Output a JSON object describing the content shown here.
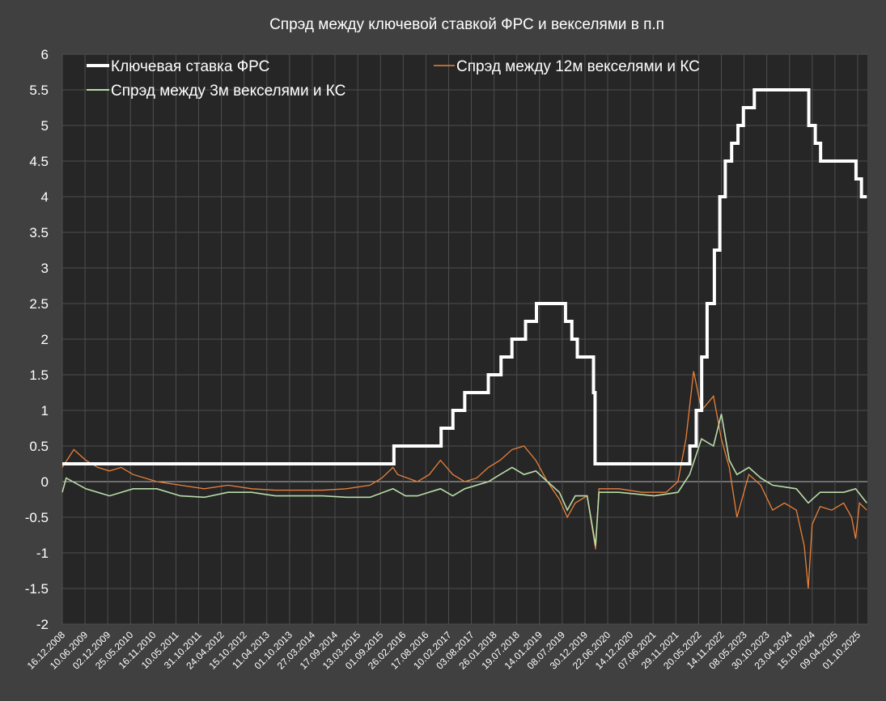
{
  "chart_data": {
    "type": "line",
    "title": "Спрэд между ключевой ставкой ФРС и векселями в п.п",
    "xlabel": "",
    "ylabel": "",
    "ylim": [
      -2,
      6
    ],
    "ystep": 0.5,
    "yticks": [
      "-2",
      "-1.5",
      "-1",
      "-0.5",
      "0",
      "0.5",
      "1",
      "1.5",
      "2",
      "2.5",
      "3",
      "3.5",
      "4",
      "4.5",
      "5",
      "5.5",
      "6"
    ],
    "grid": true,
    "legend_placement": "top",
    "xticks": [
      "16.12.2008",
      "10.06.2009",
      "02.12.2009",
      "25.05.2010",
      "16.11.2010",
      "10.05.2011",
      "31.10.2011",
      "24.04.2012",
      "15.10.2012",
      "11.04.2013",
      "01.10.2013",
      "27.03.2014",
      "17.09.2014",
      "13.03.2015",
      "01.09.2015",
      "26.02.2016",
      "17.08.2016",
      "10.02.2017",
      "03.08.2017",
      "26.01.2018",
      "19.07.2018",
      "14.01.2019",
      "08.07.2019",
      "30.12.2019",
      "22.06.2020",
      "14.12.2020",
      "07.06.2021",
      "29.11.2021",
      "20.05.2022",
      "14.11.2022",
      "08.05.2023",
      "30.10.2023",
      "23.04.2024",
      "15.10.2024",
      "09.04.2025",
      "01.10.2025"
    ],
    "xrange": [
      "2008-12-16",
      "2025-12-10"
    ],
    "series": [
      {
        "name": "Ключевая ставка ФРС",
        "color": "#ffffff",
        "style": "step",
        "points": [
          [
            "2008-12-16",
            0.25
          ],
          [
            "2015-12-17",
            0.5
          ],
          [
            "2016-12-15",
            0.75
          ],
          [
            "2017-03-16",
            1.0
          ],
          [
            "2017-06-15",
            1.25
          ],
          [
            "2017-12-14",
            1.5
          ],
          [
            "2018-03-22",
            1.75
          ],
          [
            "2018-06-14",
            2.0
          ],
          [
            "2018-09-27",
            2.25
          ],
          [
            "2018-12-20",
            2.5
          ],
          [
            "2019-08-01",
            2.25
          ],
          [
            "2019-09-19",
            2.0
          ],
          [
            "2019-10-31",
            1.75
          ],
          [
            "2020-03-04",
            1.25
          ],
          [
            "2020-03-16",
            0.25
          ],
          [
            "2022-03-17",
            0.5
          ],
          [
            "2022-05-05",
            1.0
          ],
          [
            "2022-06-16",
            1.75
          ],
          [
            "2022-07-28",
            2.5
          ],
          [
            "2022-09-22",
            3.25
          ],
          [
            "2022-11-03",
            4.0
          ],
          [
            "2022-12-15",
            4.5
          ],
          [
            "2023-02-02",
            4.75
          ],
          [
            "2023-03-23",
            5.0
          ],
          [
            "2023-05-04",
            5.25
          ],
          [
            "2023-07-27",
            5.5
          ],
          [
            "2024-09-19",
            5.0
          ],
          [
            "2024-11-08",
            4.75
          ],
          [
            "2024-12-19",
            4.5
          ],
          [
            "2025-09-18",
            4.25
          ],
          [
            "2025-10-30",
            4.0
          ],
          [
            "2025-12-10",
            4.0
          ]
        ]
      },
      {
        "name": "Спрэд между 12м векселями и КС",
        "color": "#e8803a",
        "style": "line",
        "points": [
          [
            "2008-12-16",
            0.2
          ],
          [
            "2009-03-15",
            0.45
          ],
          [
            "2009-06-15",
            0.3
          ],
          [
            "2009-09-15",
            0.2
          ],
          [
            "2009-12-15",
            0.15
          ],
          [
            "2010-03-15",
            0.2
          ],
          [
            "2010-06-15",
            0.1
          ],
          [
            "2010-09-15",
            0.05
          ],
          [
            "2010-12-15",
            0.0
          ],
          [
            "2011-06-15",
            -0.05
          ],
          [
            "2011-12-15",
            -0.1
          ],
          [
            "2012-06-15",
            -0.05
          ],
          [
            "2012-12-15",
            -0.1
          ],
          [
            "2013-06-15",
            -0.12
          ],
          [
            "2013-12-15",
            -0.12
          ],
          [
            "2014-06-15",
            -0.12
          ],
          [
            "2014-12-15",
            -0.1
          ],
          [
            "2015-06-15",
            -0.05
          ],
          [
            "2015-09-15",
            0.05
          ],
          [
            "2015-12-10",
            0.2
          ],
          [
            "2016-01-15",
            0.1
          ],
          [
            "2016-06-15",
            0.0
          ],
          [
            "2016-09-15",
            0.1
          ],
          [
            "2016-12-10",
            0.3
          ],
          [
            "2017-03-15",
            0.1
          ],
          [
            "2017-06-15",
            0.0
          ],
          [
            "2017-09-15",
            0.05
          ],
          [
            "2017-12-15",
            0.2
          ],
          [
            "2018-03-15",
            0.3
          ],
          [
            "2018-06-15",
            0.45
          ],
          [
            "2018-09-15",
            0.5
          ],
          [
            "2018-12-15",
            0.3
          ],
          [
            "2019-03-15",
            0.0
          ],
          [
            "2019-06-15",
            -0.25
          ],
          [
            "2019-08-15",
            -0.5
          ],
          [
            "2019-10-15",
            -0.3
          ],
          [
            "2020-01-15",
            -0.2
          ],
          [
            "2020-03-20",
            -0.95
          ],
          [
            "2020-04-15",
            -0.1
          ],
          [
            "2020-09-15",
            -0.1
          ],
          [
            "2021-03-15",
            -0.15
          ],
          [
            "2021-09-15",
            -0.15
          ],
          [
            "2021-12-15",
            0.0
          ],
          [
            "2022-02-15",
            0.6
          ],
          [
            "2022-04-15",
            1.55
          ],
          [
            "2022-06-15",
            1.0
          ],
          [
            "2022-09-15",
            1.2
          ],
          [
            "2022-11-15",
            0.6
          ],
          [
            "2023-01-15",
            0.2
          ],
          [
            "2023-03-15",
            -0.5
          ],
          [
            "2023-06-15",
            0.1
          ],
          [
            "2023-09-15",
            -0.05
          ],
          [
            "2023-12-15",
            -0.4
          ],
          [
            "2024-03-15",
            -0.3
          ],
          [
            "2024-06-15",
            -0.4
          ],
          [
            "2024-08-15",
            -0.9
          ],
          [
            "2024-09-15",
            -1.5
          ],
          [
            "2024-10-15",
            -0.6
          ],
          [
            "2024-12-15",
            -0.35
          ],
          [
            "2025-03-15",
            -0.4
          ],
          [
            "2025-06-15",
            -0.3
          ],
          [
            "2025-08-15",
            -0.5
          ],
          [
            "2025-09-15",
            -0.8
          ],
          [
            "2025-10-15",
            -0.3
          ],
          [
            "2025-12-10",
            -0.4
          ]
        ]
      },
      {
        "name": "Спрэд между 3м векселями и КС",
        "color": "#b9dca8",
        "style": "line",
        "points": [
          [
            "2008-12-16",
            -0.15
          ],
          [
            "2009-01-15",
            0.05
          ],
          [
            "2009-06-15",
            -0.1
          ],
          [
            "2009-12-15",
            -0.2
          ],
          [
            "2010-06-15",
            -0.1
          ],
          [
            "2010-12-15",
            -0.1
          ],
          [
            "2011-06-15",
            -0.2
          ],
          [
            "2011-12-15",
            -0.22
          ],
          [
            "2012-06-15",
            -0.15
          ],
          [
            "2012-12-15",
            -0.15
          ],
          [
            "2013-06-15",
            -0.2
          ],
          [
            "2013-12-15",
            -0.2
          ],
          [
            "2014-06-15",
            -0.2
          ],
          [
            "2014-12-15",
            -0.22
          ],
          [
            "2015-06-15",
            -0.22
          ],
          [
            "2015-12-10",
            -0.1
          ],
          [
            "2016-03-15",
            -0.2
          ],
          [
            "2016-06-15",
            -0.2
          ],
          [
            "2016-12-10",
            -0.1
          ],
          [
            "2017-03-15",
            -0.2
          ],
          [
            "2017-06-15",
            -0.1
          ],
          [
            "2017-12-15",
            0.0
          ],
          [
            "2018-03-15",
            0.1
          ],
          [
            "2018-06-15",
            0.2
          ],
          [
            "2018-09-15",
            0.1
          ],
          [
            "2018-12-15",
            0.15
          ],
          [
            "2019-03-15",
            0.0
          ],
          [
            "2019-06-15",
            -0.15
          ],
          [
            "2019-08-15",
            -0.4
          ],
          [
            "2019-10-15",
            -0.2
          ],
          [
            "2020-01-15",
            -0.2
          ],
          [
            "2020-03-20",
            -0.9
          ],
          [
            "2020-04-15",
            -0.15
          ],
          [
            "2020-09-15",
            -0.15
          ],
          [
            "2021-06-15",
            -0.2
          ],
          [
            "2021-12-15",
            -0.15
          ],
          [
            "2022-03-15",
            0.1
          ],
          [
            "2022-06-15",
            0.6
          ],
          [
            "2022-09-15",
            0.5
          ],
          [
            "2022-11-15",
            0.95
          ],
          [
            "2023-01-15",
            0.3
          ],
          [
            "2023-03-15",
            0.1
          ],
          [
            "2023-06-15",
            0.2
          ],
          [
            "2023-09-15",
            0.05
          ],
          [
            "2023-12-15",
            -0.05
          ],
          [
            "2024-06-15",
            -0.1
          ],
          [
            "2024-09-15",
            -0.3
          ],
          [
            "2024-12-15",
            -0.15
          ],
          [
            "2025-03-15",
            -0.15
          ],
          [
            "2025-06-15",
            -0.15
          ],
          [
            "2025-09-15",
            -0.1
          ],
          [
            "2025-12-10",
            -0.3
          ]
        ]
      }
    ]
  }
}
